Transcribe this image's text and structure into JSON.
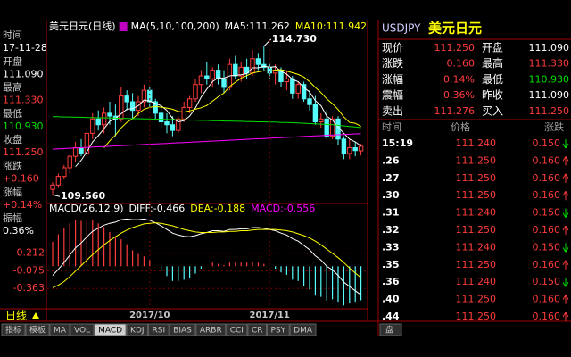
{
  "left_panel": {
    "items": [
      {
        "label": "时间",
        "value": "17-11-28",
        "color": "#ffffff"
      },
      {
        "label": "开盘",
        "value": "111.090",
        "color": "#ffffff"
      },
      {
        "label": "最高",
        "value": "111.330",
        "color": "#ff3c3c"
      },
      {
        "label": "最低",
        "value": "110.930",
        "color": "#00e000"
      },
      {
        "label": "收盘",
        "value": "111.250",
        "color": "#ff3c3c"
      },
      {
        "label": "涨跌",
        "value": "+0.160",
        "color": "#ff3c3c"
      },
      {
        "label": "涨幅",
        "value": "+0.14%",
        "color": "#ff3c3c"
      },
      {
        "label": "振幅",
        "value": "0.36%",
        "color": "#ffffff"
      }
    ]
  },
  "chart_data": [
    {
      "type": "candlestick",
      "title": "美元日元(日线)",
      "subtitle": "MA(5,10,100,200)",
      "up_color": "#ff3c3c",
      "down_color": "#54fcfc",
      "ylim": [
        109.35,
        115.1
      ],
      "ohlc": [
        [
          109.75,
          110.0,
          109.56,
          109.9
        ],
        [
          109.9,
          110.3,
          109.8,
          110.2
        ],
        [
          110.2,
          110.6,
          110.1,
          110.5
        ],
        [
          110.5,
          111.0,
          110.3,
          110.9
        ],
        [
          110.9,
          111.4,
          110.7,
          111.2
        ],
        [
          111.2,
          111.5,
          110.9,
          111.0
        ],
        [
          111.0,
          111.9,
          110.9,
          111.7
        ],
        [
          111.7,
          112.4,
          111.5,
          112.2
        ],
        [
          112.2,
          112.5,
          111.8,
          112.0
        ],
        [
          112.0,
          112.6,
          111.7,
          112.4
        ],
        [
          112.4,
          112.8,
          112.0,
          112.3
        ],
        [
          112.3,
          112.7,
          111.6,
          112.2
        ],
        [
          112.2,
          113.3,
          112.1,
          113.0
        ],
        [
          113.0,
          113.2,
          112.5,
          112.8
        ],
        [
          112.8,
          113.1,
          112.2,
          112.5
        ],
        [
          112.5,
          113.0,
          112.3,
          112.8
        ],
        [
          112.8,
          113.4,
          112.6,
          113.2
        ],
        [
          113.2,
          113.3,
          112.6,
          112.8
        ],
        [
          112.8,
          112.9,
          112.2,
          112.4
        ],
        [
          112.4,
          112.7,
          111.9,
          112.1
        ],
        [
          112.1,
          112.4,
          111.7,
          112.0
        ],
        [
          112.0,
          112.3,
          111.6,
          111.8
        ],
        [
          111.8,
          112.3,
          111.7,
          112.2
        ],
        [
          112.2,
          112.8,
          112.1,
          112.6
        ],
        [
          112.6,
          113.0,
          112.4,
          112.9
        ],
        [
          112.9,
          113.6,
          112.8,
          113.4
        ],
        [
          113.4,
          113.9,
          113.1,
          113.7
        ],
        [
          113.7,
          114.2,
          113.4,
          113.6
        ],
        [
          113.6,
          114.0,
          113.3,
          113.9
        ],
        [
          113.9,
          114.1,
          113.4,
          113.6
        ],
        [
          113.6,
          113.9,
          113.1,
          113.3
        ],
        [
          113.3,
          114.3,
          113.2,
          114.1
        ],
        [
          114.1,
          114.4,
          113.6,
          113.7
        ],
        [
          113.7,
          114.2,
          113.5,
          114.0
        ],
        [
          114.0,
          114.3,
          113.6,
          113.8
        ],
        [
          113.8,
          114.6,
          113.7,
          114.3
        ],
        [
          114.3,
          114.5,
          113.9,
          114.1
        ],
        [
          114.1,
          114.73,
          113.9,
          114.0
        ],
        [
          114.0,
          114.2,
          113.6,
          113.8
        ],
        [
          113.8,
          114.1,
          113.4,
          113.9
        ],
        [
          113.9,
          114.0,
          113.3,
          113.5
        ],
        [
          113.5,
          113.9,
          113.2,
          113.6
        ],
        [
          113.6,
          113.7,
          112.9,
          113.1
        ],
        [
          113.1,
          113.5,
          112.9,
          113.4
        ],
        [
          113.4,
          113.5,
          112.8,
          112.9
        ],
        [
          112.9,
          113.2,
          112.5,
          112.7
        ],
        [
          112.7,
          113.0,
          112.0,
          112.1
        ],
        [
          112.1,
          112.4,
          111.9,
          112.2
        ],
        [
          112.2,
          112.5,
          111.5,
          111.6
        ],
        [
          111.6,
          112.3,
          111.5,
          112.2
        ],
        [
          112.2,
          112.3,
          111.3,
          111.5
        ],
        [
          111.5,
          111.6,
          110.8,
          111.0
        ],
        [
          111.0,
          111.5,
          110.8,
          111.2
        ],
        [
          111.2,
          111.4,
          110.9,
          111.1
        ],
        [
          111.09,
          111.33,
          110.93,
          111.25
        ]
      ],
      "series": [
        {
          "name": "MA5:111.262",
          "color": "#ffffff",
          "values": [
            null,
            null,
            null,
            null,
            110.54,
            110.76,
            111.06,
            111.4,
            111.62,
            111.86,
            112.12,
            112.22,
            112.38,
            112.54,
            112.56,
            112.66,
            112.86,
            112.82,
            112.74,
            112.66,
            112.5,
            112.22,
            112.1,
            112.14,
            112.3,
            112.58,
            112.96,
            113.24,
            113.5,
            113.64,
            113.62,
            113.7,
            113.72,
            113.74,
            113.78,
            113.98,
            113.98,
            114.04,
            114.0,
            114.02,
            113.86,
            113.76,
            113.58,
            113.5,
            113.3,
            113.14,
            112.84,
            112.66,
            112.3,
            112.16,
            111.92,
            111.7,
            111.5,
            111.4,
            111.262
          ]
        },
        {
          "name": "MA10:111.942",
          "color": "#ffff00",
          "values": [
            null,
            null,
            null,
            null,
            null,
            null,
            null,
            null,
            null,
            111.2,
            111.44,
            111.64,
            111.89,
            112.08,
            112.21,
            112.39,
            112.54,
            112.6,
            112.64,
            112.61,
            112.58,
            112.54,
            112.46,
            112.44,
            112.48,
            112.54,
            112.59,
            112.67,
            112.82,
            112.97,
            113.1,
            113.33,
            113.48,
            113.62,
            113.71,
            113.8,
            113.84,
            113.88,
            113.87,
            113.9,
            113.92,
            113.87,
            113.81,
            113.75,
            113.66,
            113.5,
            113.3,
            113.12,
            112.9,
            112.73,
            112.53,
            112.27,
            112.08,
            112.05,
            111.942
          ]
        },
        {
          "color": "#00e000",
          "values": [
            112.28,
            112.28,
            112.27,
            112.27,
            112.26,
            112.26,
            112.25,
            112.25,
            112.24,
            112.24,
            112.23,
            112.23,
            112.22,
            112.22,
            112.21,
            112.21,
            112.2,
            112.2,
            112.19,
            112.19,
            112.18,
            112.18,
            112.17,
            112.17,
            112.16,
            112.16,
            112.15,
            112.15,
            112.14,
            112.14,
            112.13,
            112.13,
            112.12,
            112.12,
            112.11,
            112.11,
            112.1,
            112.1,
            112.09,
            112.09,
            112.08,
            112.08,
            112.07,
            112.06,
            112.05,
            112.04,
            112.03,
            112.02,
            112.01,
            112.0,
            111.98,
            111.96,
            111.94,
            111.92,
            111.9
          ]
        },
        {
          "color": "#ff00ff",
          "values": [
            111.15,
            111.16,
            111.17,
            111.18,
            111.19,
            111.2,
            111.21,
            111.22,
            111.23,
            111.24,
            111.25,
            111.26,
            111.27,
            111.28,
            111.29,
            111.3,
            111.31,
            111.32,
            111.33,
            111.34,
            111.35,
            111.36,
            111.37,
            111.38,
            111.39,
            111.4,
            111.41,
            111.42,
            111.43,
            111.44,
            111.45,
            111.46,
            111.47,
            111.48,
            111.49,
            111.5,
            111.51,
            111.52,
            111.53,
            111.54,
            111.55,
            111.56,
            111.57,
            111.58,
            111.59,
            111.6,
            111.61,
            111.62,
            111.63,
            111.64,
            111.65,
            111.66,
            111.67,
            111.68,
            111.69
          ]
        }
      ],
      "annotations": [
        {
          "text": "114.730",
          "index": 37,
          "value": 114.73
        },
        {
          "text": "109.560",
          "index": 0,
          "value": 109.56
        }
      ]
    },
    {
      "type": "macd",
      "title": "MACD(26,12,9)",
      "ylim": [
        -0.68,
        0.82
      ],
      "yticks": [
        0.212,
        -0.075,
        -0.363
      ],
      "tick_color": "#ff3c3c",
      "xticks": [
        {
          "value": 17,
          "label": "2017/10"
        },
        {
          "value": 38,
          "label": "2017/11"
        }
      ],
      "up_color": "#ff3c3c",
      "down_color": "#54fcfc",
      "series": [
        {
          "name": "DIFF:-0.466",
          "color": "#ffffff",
          "values": [
            -0.15,
            -0.05,
            0.06,
            0.18,
            0.3,
            0.38,
            0.48,
            0.57,
            0.62,
            0.67,
            0.7,
            0.72,
            0.76,
            0.77,
            0.76,
            0.76,
            0.77,
            0.75,
            0.71,
            0.66,
            0.6,
            0.54,
            0.51,
            0.49,
            0.48,
            0.5,
            0.53,
            0.55,
            0.58,
            0.58,
            0.57,
            0.6,
            0.6,
            0.61,
            0.61,
            0.63,
            0.63,
            0.62,
            0.6,
            0.58,
            0.54,
            0.51,
            0.45,
            0.41,
            0.34,
            0.27,
            0.17,
            0.1,
            0.0,
            -0.06,
            -0.15,
            -0.26,
            -0.33,
            -0.4,
            -0.466
          ]
        },
        {
          "name": "DEA:-0.188",
          "color": "#ffff00",
          "values": [
            -0.35,
            -0.31,
            -0.25,
            -0.17,
            -0.08,
            0.01,
            0.1,
            0.19,
            0.27,
            0.35,
            0.42,
            0.48,
            0.54,
            0.59,
            0.63,
            0.66,
            0.69,
            0.7,
            0.71,
            0.7,
            0.68,
            0.66,
            0.63,
            0.6,
            0.58,
            0.56,
            0.55,
            0.55,
            0.55,
            0.56,
            0.56,
            0.57,
            0.57,
            0.58,
            0.58,
            0.59,
            0.6,
            0.6,
            0.6,
            0.6,
            0.59,
            0.58,
            0.56,
            0.53,
            0.5,
            0.46,
            0.41,
            0.35,
            0.28,
            0.21,
            0.14,
            0.06,
            -0.03,
            -0.11,
            -0.188
          ]
        },
        {
          "name": "MACD:-0.556",
          "color": "#ff00ff",
          "bars": true,
          "values": [
            0.4,
            0.52,
            0.62,
            0.7,
            0.76,
            0.74,
            0.76,
            0.76,
            0.7,
            0.64,
            0.56,
            0.48,
            0.44,
            0.36,
            0.26,
            0.2,
            0.16,
            0.1,
            0.0,
            -0.08,
            -0.16,
            -0.24,
            -0.24,
            -0.22,
            -0.2,
            -0.12,
            -0.04,
            0.0,
            0.06,
            0.04,
            0.02,
            0.06,
            0.06,
            0.06,
            0.06,
            0.08,
            0.06,
            0.04,
            0.0,
            -0.04,
            -0.1,
            -0.14,
            -0.22,
            -0.24,
            -0.32,
            -0.38,
            -0.48,
            -0.5,
            -0.56,
            -0.54,
            -0.58,
            -0.64,
            -0.6,
            -0.58,
            -0.556
          ]
        }
      ]
    }
  ],
  "period_label": "日线",
  "tabs": {
    "items": [
      "指标",
      "模板",
      "MA",
      "VOL",
      "MACD",
      "KDJ",
      "RSI",
      "BIAS",
      "ARBR",
      "CCI",
      "CR",
      "PSY",
      "DMA"
    ],
    "active_index": 4
  },
  "right_tabs": [
    "盘"
  ],
  "quote": {
    "symbol": "USDJPY",
    "name": "美元日元",
    "rows": [
      [
        {
          "label": "现价",
          "value": "111.250",
          "color": "#ff3c3c"
        },
        {
          "label": "开盘",
          "value": "111.090",
          "color": "#ffffff"
        }
      ],
      [
        {
          "label": "涨跌",
          "value": "0.160",
          "color": "#ff3c3c"
        },
        {
          "label": "最高",
          "value": "111.330",
          "color": "#ff3c3c"
        }
      ],
      [
        {
          "label": "涨幅",
          "value": "0.14%",
          "color": "#ff3c3c"
        },
        {
          "label": "最低",
          "value": "110.930",
          "color": "#00e000"
        }
      ],
      [
        {
          "label": "震幅",
          "value": "0.36%",
          "color": "#ff3c3c"
        },
        {
          "label": "昨收",
          "value": "111.090",
          "color": "#ffffff"
        }
      ],
      [
        {
          "label": "卖出",
          "value": "111.276",
          "color": "#ff3c3c"
        },
        {
          "label": "买入",
          "value": "111.250",
          "color": "#ff3c3c"
        }
      ]
    ]
  },
  "ticks": {
    "header": [
      "时间",
      "价格",
      "涨跌"
    ],
    "rows": [
      {
        "time": "15:19",
        "price": "111.240",
        "change": "0.150",
        "dir": "down"
      },
      {
        "time": ".26",
        "price": "111.250",
        "change": "0.160",
        "dir": "up"
      },
      {
        "time": ".27",
        "price": "111.250",
        "change": "0.160",
        "dir": "up"
      },
      {
        "time": ".30",
        "price": "111.250",
        "change": "0.160",
        "dir": "up"
      },
      {
        "time": ".31",
        "price": "111.240",
        "change": "0.150",
        "dir": "down"
      },
      {
        "time": ".32",
        "price": "111.250",
        "change": "0.160",
        "dir": "up"
      },
      {
        "time": ".33",
        "price": "111.240",
        "change": "0.150",
        "dir": "down"
      },
      {
        "time": ".35",
        "price": "111.250",
        "change": "0.160",
        "dir": "up"
      },
      {
        "time": ".36",
        "price": "111.240",
        "change": "0.150",
        "dir": "down"
      },
      {
        "time": ".40",
        "price": "111.250",
        "change": "0.160",
        "dir": "up"
      },
      {
        "time": ".44",
        "price": "111.250",
        "change": "0.160",
        "dir": "up"
      }
    ]
  }
}
